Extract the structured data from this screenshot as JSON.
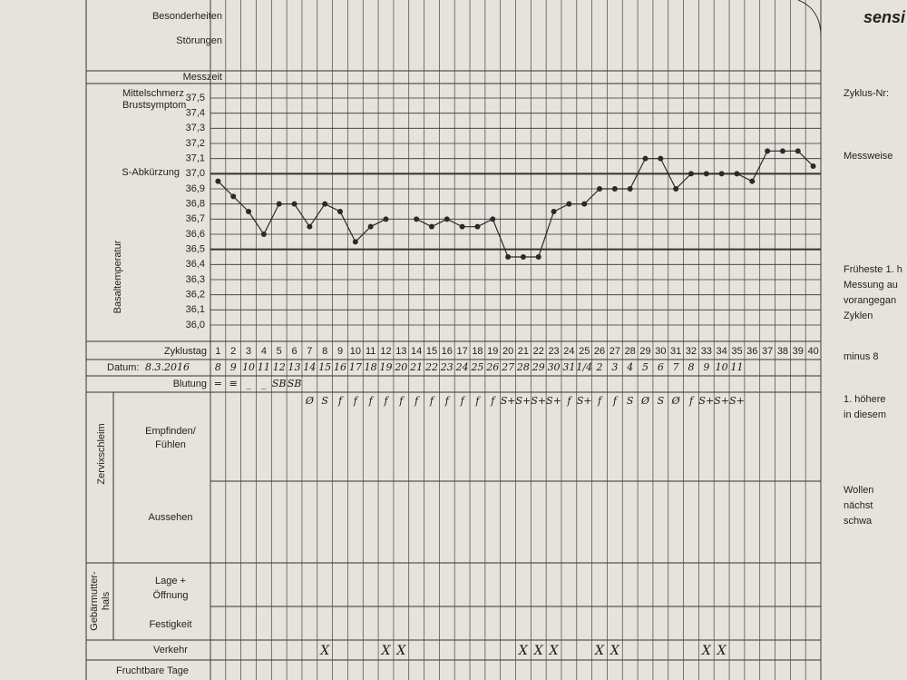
{
  "form": {
    "brand": "sensi",
    "labels": {
      "besonderheiten": "Besonderheiten",
      "stoerungen": "Störungen",
      "messzeit": "Messzeit",
      "mittelschmerz": "Mittelschmerz",
      "brustsymptom": "Brustsymptom",
      "s_abkuerzung": "S-Abkürzung",
      "zyklustag": "Zyklustag",
      "datum": "Datum:",
      "start_date": "8.3.2016",
      "blutung": "Blutung",
      "zervixschleim": "Zervixschleim",
      "empfinden": "Empfinden/",
      "fuehlen": "Fühlen",
      "aussehen": "Aussehen",
      "gebaermutter": "Gebärmutter-",
      "hals": "hals",
      "lage": "Lage +",
      "oeffnung": "Öffnung",
      "festigkeit": "Festigkeit",
      "verkehr": "Verkehr",
      "fruchtbare_tage": "Fruchtbare Tage"
    },
    "side": [
      "Zyklus-Nr:",
      "Messweise",
      "Früheste 1. h",
      "Messung au",
      "vorangegan",
      "Zyklen",
      "minus 8",
      "1. höhere",
      "in diesem",
      "Wollen",
      "nächst",
      "schwa"
    ],
    "dates": [
      "8",
      "9",
      "10",
      "11",
      "12",
      "13",
      "14",
      "15",
      "16",
      "17",
      "18",
      "19",
      "20",
      "21",
      "22",
      "23",
      "24",
      "25",
      "26",
      "27",
      "28",
      "29",
      "30",
      "31",
      "1/4",
      "2",
      "3",
      "4",
      "5",
      "6",
      "7",
      "8",
      "9",
      "10",
      "11",
      null,
      null,
      null,
      null,
      null
    ],
    "blutung": [
      "=",
      "≡",
      "_",
      "_",
      "SB",
      "SB",
      null,
      null,
      null,
      null,
      null,
      null,
      null,
      null,
      null,
      null,
      null,
      null,
      null,
      null,
      null,
      null,
      null,
      null,
      null,
      null,
      null,
      null,
      null,
      null,
      null,
      null,
      null,
      null,
      null,
      null,
      null,
      null,
      null,
      null
    ],
    "schleim": [
      null,
      null,
      null,
      null,
      null,
      null,
      "Ø",
      "S",
      "f",
      "f",
      "f",
      "f",
      "f",
      "f",
      "f",
      "f",
      "f",
      "f",
      "f",
      "S+",
      "S+",
      "S+",
      "S+",
      "f",
      "S+",
      "f",
      "f",
      "S",
      "Ø",
      "S",
      "Ø",
      "f",
      "S+",
      "S+",
      "S+",
      null,
      null,
      null,
      null,
      null
    ],
    "verkehr": {
      "mark": "X",
      "days": [
        8,
        12,
        13,
        21,
        22,
        23,
        26,
        27,
        33,
        34
      ]
    }
  },
  "chart_data": {
    "type": "line",
    "ylabel": "Basaltemperatur",
    "x": [
      1,
      2,
      3,
      4,
      5,
      6,
      7,
      8,
      9,
      10,
      11,
      12,
      13,
      14,
      15,
      16,
      17,
      18,
      19,
      20,
      21,
      22,
      23,
      24,
      25,
      26,
      27,
      28,
      29,
      30,
      31,
      32,
      33,
      34,
      35,
      36,
      37,
      38,
      39,
      40
    ],
    "series": [
      {
        "color": "#2a2a2a",
        "values": [
          36.95,
          36.85,
          36.75,
          36.6,
          36.8,
          36.8,
          36.65,
          36.8,
          36.75,
          36.55,
          36.65,
          36.7,
          null,
          36.7,
          36.65,
          36.7,
          36.65,
          36.65,
          36.7,
          36.45,
          36.45,
          36.45,
          36.75,
          36.8,
          36.8,
          36.9,
          36.9,
          36.9,
          37.1,
          37.1,
          36.9,
          37.0,
          37.0,
          37.0,
          37.0,
          36.95,
          37.15,
          37.15,
          37.15,
          37.05
        ]
      }
    ],
    "ylim": [
      36.0,
      37.5
    ],
    "yticks": [
      {
        "value": 37.5,
        "label": "37,5"
      },
      {
        "value": 37.4,
        "label": "37,4"
      },
      {
        "value": 37.3,
        "label": "37,3"
      },
      {
        "value": 37.2,
        "label": "37,2"
      },
      {
        "value": 37.1,
        "label": "37,1"
      },
      {
        "value": 37.0,
        "label": "37,0"
      },
      {
        "value": 36.9,
        "label": "36,9"
      },
      {
        "value": 36.8,
        "label": "36,8"
      },
      {
        "value": 36.7,
        "label": "36,7"
      },
      {
        "value": 36.6,
        "label": "36,6"
      },
      {
        "value": 36.5,
        "label": "36,5"
      },
      {
        "value": 36.4,
        "label": "36,4"
      },
      {
        "value": 36.3,
        "label": "36,3"
      },
      {
        "value": 36.2,
        "label": "36,2"
      },
      {
        "value": 36.1,
        "label": "36,1"
      },
      {
        "value": 36.0,
        "label": "36,0"
      }
    ],
    "grid": true
  }
}
